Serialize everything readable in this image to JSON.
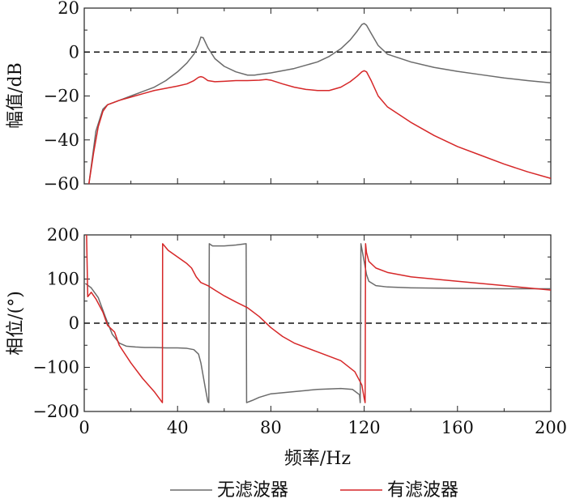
{
  "chart_data": [
    {
      "type": "line",
      "xlim": [
        0,
        200
      ],
      "ylim": [
        -60,
        20
      ],
      "ylabel": "幅值/dB",
      "xticks": [
        0,
        40,
        80,
        120,
        160,
        200
      ],
      "yticks": [
        -60,
        -40,
        -20,
        0,
        20
      ],
      "reference_line": {
        "y": 0,
        "style": "dashed"
      },
      "series": [
        {
          "name": "无滤波器",
          "color": "#6b6b6b",
          "x": [
            2,
            5,
            8,
            10,
            15,
            20,
            25,
            30,
            35,
            40,
            44,
            47,
            49,
            50,
            51,
            53,
            56,
            60,
            65,
            70,
            73,
            75,
            80,
            90,
            100,
            105,
            110,
            114,
            117,
            119,
            120,
            121,
            123,
            126,
            130,
            140,
            150,
            160,
            170,
            180,
            190,
            200
          ],
          "y": [
            -60,
            -36,
            -26,
            -24,
            -22,
            -20,
            -18,
            -16,
            -13,
            -9,
            -5,
            -1,
            3.5,
            6.8,
            6.5,
            2,
            -3,
            -6.5,
            -9,
            -10.5,
            -10.5,
            -10.2,
            -9.5,
            -7.5,
            -4.5,
            -2,
            1.5,
            5.5,
            9.5,
            12.5,
            13,
            12.2,
            8.5,
            3,
            -1,
            -4.5,
            -7,
            -8.8,
            -10.3,
            -11.8,
            -13,
            -14
          ]
        },
        {
          "name": "有滤波器",
          "color": "#d62728",
          "x": [
            2,
            4,
            6,
            8,
            10,
            15,
            20,
            25,
            30,
            35,
            40,
            44,
            47,
            49,
            50,
            51,
            53,
            56,
            60,
            65,
            70,
            75,
            78,
            80,
            85,
            90,
            95,
            100,
            105,
            110,
            114,
            117,
            119,
            120,
            121,
            123,
            126,
            130,
            140,
            150,
            160,
            170,
            180,
            190,
            200
          ],
          "y": [
            -60,
            -46,
            -34,
            -27,
            -24,
            -22,
            -20.5,
            -19,
            -17.5,
            -16.5,
            -15.5,
            -14.5,
            -13,
            -11.5,
            -11.2,
            -11.5,
            -13,
            -13.5,
            -13.3,
            -13,
            -13,
            -12.8,
            -12.5,
            -12.8,
            -14.5,
            -16,
            -17,
            -17.5,
            -17.5,
            -16,
            -13.5,
            -11,
            -9,
            -8.5,
            -9,
            -13,
            -20,
            -25,
            -32,
            -38,
            -43,
            -47,
            -51,
            -54.5,
            -57.5
          ]
        }
      ]
    },
    {
      "type": "line",
      "xlim": [
        0,
        200
      ],
      "ylim": [
        -200,
        200
      ],
      "xlabel": "频率/Hz",
      "ylabel": "相位/(°)",
      "xticks": [
        0,
        40,
        80,
        120,
        160,
        200
      ],
      "yticks": [
        -200,
        -100,
        0,
        100,
        200
      ],
      "reference_line": {
        "y": 0,
        "style": "dashed"
      },
      "series": [
        {
          "name": "无滤波器",
          "color": "#6b6b6b",
          "x": [
            0.5,
            3,
            6,
            9,
            12,
            15,
            18,
            22,
            26,
            30,
            35,
            40,
            44,
            47,
            49,
            50,
            51,
            52,
            53,
            53.4,
            53.6,
            55,
            60,
            65,
            69.4,
            69.6,
            72,
            75,
            80,
            90,
            100,
            110,
            115,
            118,
            118.3,
            118.6,
            120,
            121,
            122,
            125,
            130,
            140,
            160,
            180,
            200
          ],
          "y": [
            90,
            80,
            58,
            15,
            -25,
            -45,
            -52,
            -54,
            -55,
            -55,
            -56,
            -56,
            -57,
            -60,
            -70,
            -90,
            -120,
            -150,
            -178,
            -180,
            180,
            175,
            175,
            177,
            180,
            -180,
            -175,
            -168,
            -160,
            -155,
            -150,
            -148,
            -150,
            -162,
            -180,
            180,
            140,
            110,
            95,
            85,
            82,
            80,
            79,
            78,
            78
          ]
        },
        {
          "name": "有滤波器",
          "color": "#d62728",
          "x": [
            1,
            1.5,
            3,
            5,
            8,
            10,
            13,
            15,
            20,
            25,
            30,
            33.5,
            33.6,
            36,
            40,
            44,
            46,
            48,
            50,
            53,
            56,
            60,
            65,
            70,
            75,
            80,
            85,
            90,
            100,
            110,
            116,
            119,
            120,
            120.4,
            120.6,
            121,
            122,
            125,
            130,
            140,
            160,
            180,
            200
          ],
          "y": [
            200,
            60,
            70,
            55,
            25,
            -5,
            -20,
            -50,
            -90,
            -125,
            -155,
            -180,
            180,
            165,
            150,
            135,
            125,
            105,
            92,
            85,
            75,
            62,
            48,
            35,
            15,
            -10,
            -30,
            -45,
            -65,
            -85,
            -110,
            -140,
            -170,
            -180,
            180,
            160,
            140,
            125,
            115,
            105,
            95,
            85,
            75
          ]
        }
      ]
    }
  ],
  "legend": {
    "position": "bottom-center",
    "items": [
      {
        "label": "无滤波器",
        "color": "#6b6b6b"
      },
      {
        "label": "有滤波器",
        "color": "#d62728"
      }
    ]
  }
}
